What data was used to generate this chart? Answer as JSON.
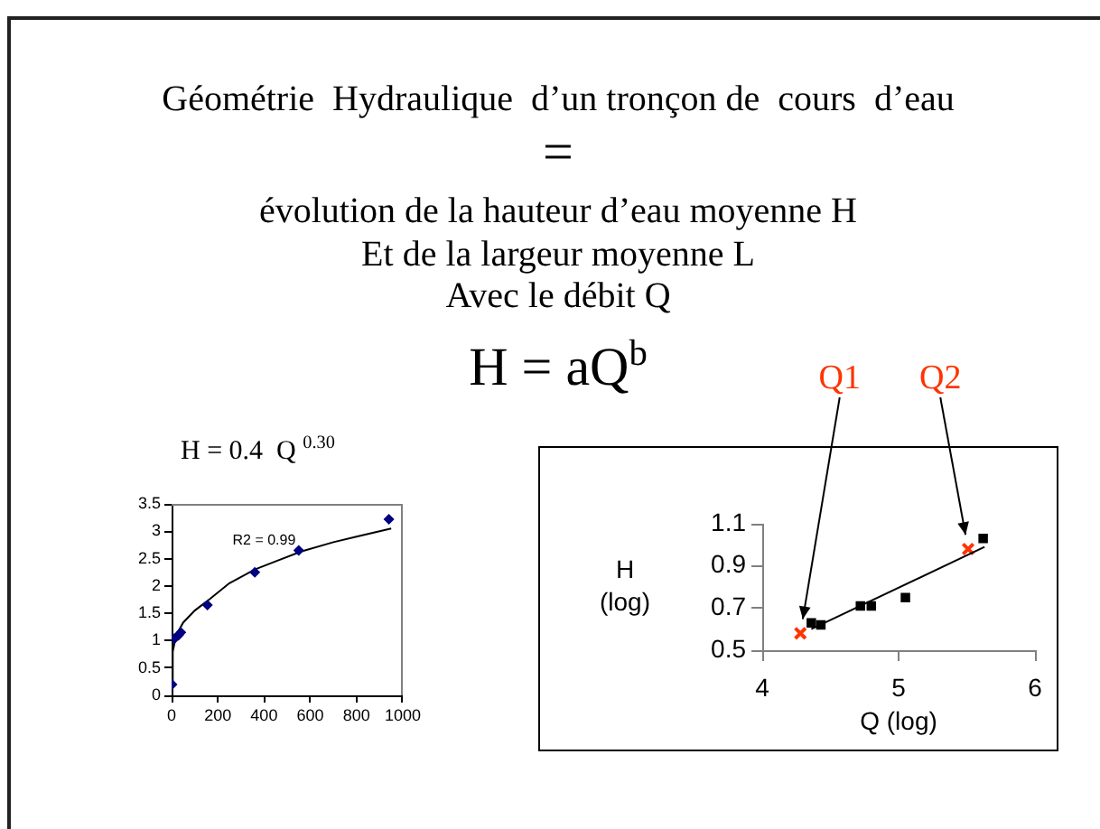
{
  "chart_data": [
    {
      "type": "other",
      "title": "Géométrie  Hydraulique  d’un tronçon de  cours  d’eau",
      "annotations": [
        "=",
        "évolution de la hauteur d’eau moyenne H",
        "Et de la largeur moyenne L",
        "Avec le débit Q",
        "H = aQ$^{b}$"
      ]
    },
    {
      "type": "scatter",
      "title": "H = 0.4  Q $^{0.30}$",
      "annotations": [
        "R2 = 0.99"
      ],
      "series": [
        {
          "type": "scatter",
          "color": "#000080",
          "marker": "diamond",
          "x": [
            2,
            13,
            30,
            40,
            155,
            360,
            550,
            940
          ],
          "values": [
            0.2,
            1.04,
            1.1,
            1.15,
            1.65,
            2.25,
            2.65,
            3.22
          ]
        },
        {
          "type": "line",
          "color": "#000000",
          "marker": "none",
          "x": [
            1,
            5,
            20,
            50,
            100,
            150,
            250,
            360,
            450,
            560,
            700,
            800,
            950
          ],
          "values": [
            0.15,
            0.8,
            1.1,
            1.33,
            1.55,
            1.71,
            2.05,
            2.3,
            2.45,
            2.63,
            2.8,
            2.9,
            3.05
          ]
        }
      ],
      "xlim": [
        0,
        1000
      ],
      "xticks": [
        0,
        200,
        400,
        600,
        800,
        1000
      ],
      "ylim": [
        0,
        3.5
      ],
      "yticks": [
        0,
        0.5,
        1,
        1.5,
        2,
        2.5,
        3,
        3.5
      ]
    },
    {
      "type": "scatter",
      "xlabel": "Q (log)",
      "ylabel": "H\n(log)",
      "annotations": [
        {
          "text": "Q1",
          "x": 4.28,
          "y": 0.58
        },
        {
          "text": "Q2",
          "x": 5.51,
          "y": 0.98
        }
      ],
      "series": [
        {
          "type": "scatter",
          "color": "#000000",
          "marker": "square",
          "x": [
            4.36,
            4.43,
            4.72,
            4.8,
            5.05,
            5.62
          ],
          "values": [
            0.63,
            0.62,
            0.71,
            0.71,
            0.75,
            1.03
          ]
        },
        {
          "type": "line",
          "color": "#000000",
          "marker": "none",
          "x": [
            4.36,
            5.63
          ],
          "values": [
            0.6,
            0.99
          ]
        },
        {
          "type": "scatter",
          "color": "#ff3300",
          "marker": "cross",
          "x": [
            4.28,
            5.51
          ],
          "values": [
            0.58,
            0.98
          ]
        }
      ],
      "xlim": [
        4,
        6
      ],
      "xticks": [
        4,
        5,
        6
      ],
      "ylim": [
        0.5,
        1.1
      ],
      "yticks": [
        0.5,
        0.7,
        0.9,
        1.1
      ]
    }
  ]
}
